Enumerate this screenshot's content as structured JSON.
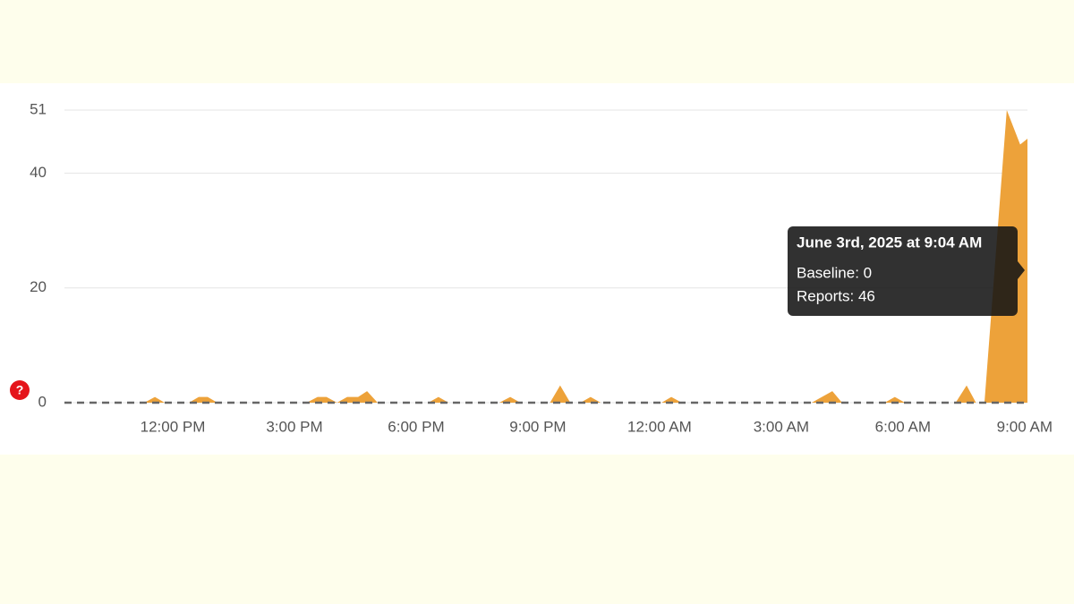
{
  "chart_data": {
    "type": "area",
    "x": [
      9.33,
      11.3,
      11.56,
      11.8,
      12.4,
      12.64,
      12.86,
      13.1,
      15.3,
      15.57,
      15.79,
      16.05,
      16.3,
      16.57,
      16.79,
      17.05,
      18.3,
      18.55,
      18.8,
      20.05,
      20.32,
      20.57,
      21.3,
      21.55,
      21.8,
      22.05,
      22.3,
      22.55,
      24.05,
      24.29,
      24.55,
      27.75,
      28.26,
      28.5,
      29.55,
      29.8,
      30.05,
      31.3,
      31.57,
      31.8,
      32.01,
      32.56,
      32.89,
      33.07
    ],
    "series": [
      {
        "name": "Reports",
        "color": "#eda23a",
        "values": [
          0,
          0,
          1,
          0,
          0,
          1,
          1,
          0,
          0,
          1,
          1,
          0,
          1,
          1,
          2,
          0,
          0,
          1,
          0,
          0,
          1,
          0,
          0,
          3,
          0,
          0,
          1,
          0,
          0,
          1,
          0,
          0,
          2,
          0,
          0,
          1,
          0,
          0,
          3,
          0,
          0,
          51,
          45,
          46
        ]
      },
      {
        "name": "Baseline",
        "color": "#666666",
        "values": [
          0,
          0,
          0,
          0,
          0,
          0,
          0,
          0,
          0,
          0,
          0,
          0,
          0,
          0,
          0,
          0,
          0,
          0,
          0,
          0,
          0,
          0,
          0,
          0,
          0,
          0,
          0,
          0,
          0,
          0,
          0,
          0,
          0,
          0,
          0,
          0,
          0,
          0,
          0,
          0,
          0,
          0,
          0,
          0
        ]
      }
    ],
    "xlim": [
      9.33,
      33.07
    ],
    "xticks": [
      {
        "value": 12,
        "label": "12:00 PM"
      },
      {
        "value": 15,
        "label": "3:00 PM"
      },
      {
        "value": 18,
        "label": "6:00 PM"
      },
      {
        "value": 21,
        "label": "9:00 PM"
      },
      {
        "value": 24,
        "label": "12:00 AM"
      },
      {
        "value": 27,
        "label": "3:00 AM"
      },
      {
        "value": 30,
        "label": "6:00 AM"
      },
      {
        "value": 33,
        "label": "9:00 AM"
      }
    ],
    "ylim": [
      0,
      51
    ],
    "yticks": [
      0,
      20,
      40,
      51
    ],
    "grid": true,
    "tooltip": {
      "title": "June 3rd, 2025 at 9:04 AM",
      "lines": [
        "Baseline: 0",
        "Reports: 46"
      ]
    },
    "help_icon": "?"
  }
}
